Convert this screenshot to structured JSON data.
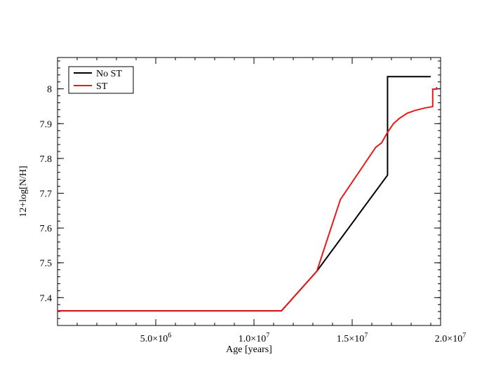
{
  "chart_data": {
    "type": "line",
    "title": "",
    "xlabel": "Age [years]",
    "ylabel": "12+log[N/H]",
    "xlim": [
      0,
      19500000
    ],
    "ylim": [
      7.32,
      8.09
    ],
    "grid": false,
    "legend_placement": "top-left",
    "x_ticks": [
      {
        "value": 5000000,
        "mantissa": "5.0×10",
        "exp": "6"
      },
      {
        "value": 10000000,
        "mantissa": "1.0×10",
        "exp": "7"
      },
      {
        "value": 15000000,
        "mantissa": "1.5×10",
        "exp": "7"
      },
      {
        "value": 20000000,
        "mantissa": "2.0×10",
        "exp": "7"
      }
    ],
    "y_ticks": [
      {
        "value": 7.4,
        "label": "7.4"
      },
      {
        "value": 7.5,
        "label": "7.5"
      },
      {
        "value": 7.6,
        "label": "7.6"
      },
      {
        "value": 7.7,
        "label": "7.7"
      },
      {
        "value": 7.8,
        "label": "7.8"
      },
      {
        "value": 7.9,
        "label": "7.9"
      },
      {
        "value": 8.0,
        "label": "8"
      }
    ],
    "series": [
      {
        "name": "No ST",
        "color": "#000000",
        "x": [
          0,
          11400000,
          13200000,
          16800000,
          16800000,
          19000000
        ],
        "y": [
          7.362,
          7.362,
          7.476,
          7.752,
          8.035,
          8.035
        ]
      },
      {
        "name": "ST",
        "color": "#e8191a",
        "x": [
          0,
          11400000,
          13200000,
          14400000,
          16200000,
          16500000,
          16800000,
          17100000,
          17400000,
          17800000,
          18200000,
          18700000,
          19100000,
          19100000,
          19150000,
          19300000,
          19300000
        ],
        "y": [
          7.362,
          7.362,
          7.476,
          7.682,
          7.832,
          7.845,
          7.875,
          7.9,
          7.915,
          7.93,
          7.938,
          7.945,
          7.949,
          7.999,
          7.999,
          7.999,
          8.005
        ]
      }
    ]
  }
}
